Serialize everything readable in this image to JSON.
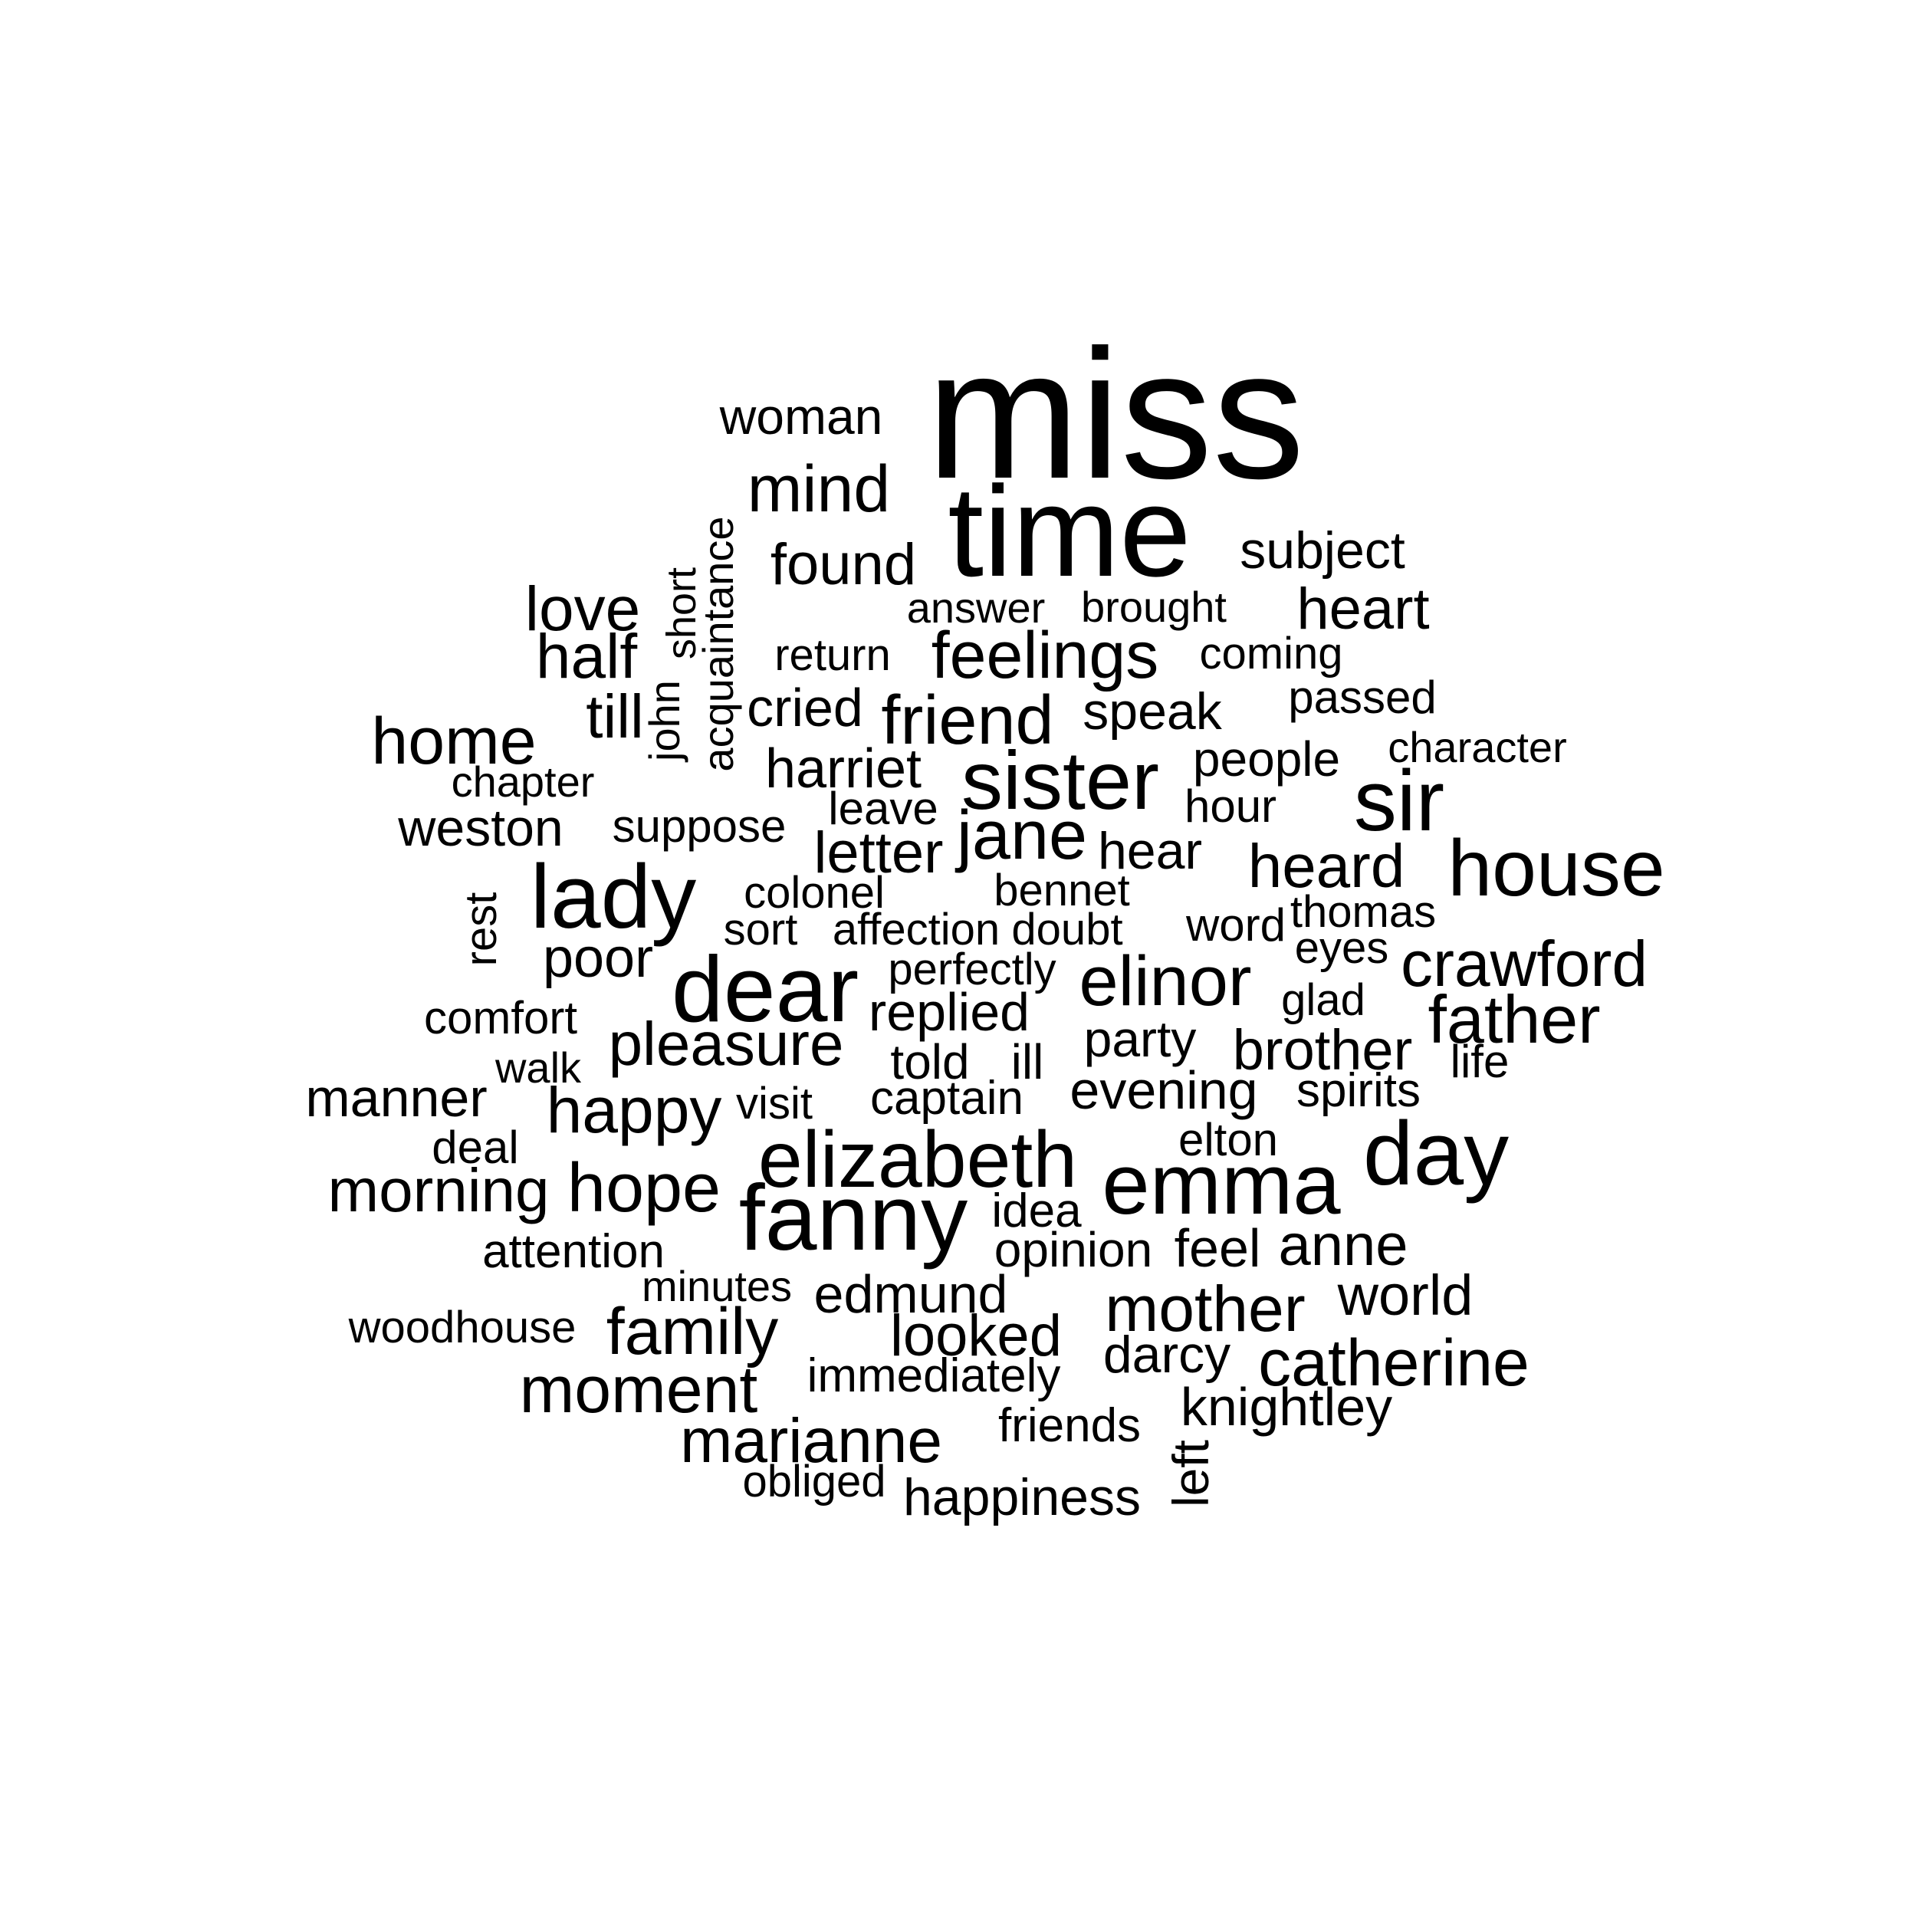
{
  "words": [
    "miss",
    "time",
    "woman",
    "mind",
    "found",
    "subject",
    "acquaintance",
    "short",
    "love",
    "answer",
    "brought",
    "heart",
    "half",
    "return",
    "feelings",
    "coming",
    "john",
    "till",
    "cried",
    "friend",
    "speak",
    "passed",
    "home",
    "harriet",
    "sister",
    "people",
    "character",
    "chapter",
    "sir",
    "leave",
    "hour",
    "weston",
    "suppose",
    "jane",
    "letter",
    "hear",
    "heard",
    "house",
    "lady",
    "rest",
    "colonel",
    "bennet",
    "thomas",
    "sort",
    "affection",
    "doubt",
    "word",
    "eyes",
    "poor",
    "perfectly",
    "dear",
    "elinor",
    "crawford",
    "comfort",
    "replied",
    "glad",
    "father",
    "pleasure",
    "party",
    "walk",
    "told",
    "ill",
    "brother",
    "life",
    "manner",
    "happy",
    "visit",
    "captain",
    "evening",
    "spirits",
    "deal",
    "elizabeth",
    "elton",
    "day",
    "morning",
    "hope",
    "emma",
    "idea",
    "fanny",
    "attention",
    "opinion",
    "feel",
    "anne",
    "minutes",
    "edmund",
    "world",
    "mother",
    "woodhouse",
    "family",
    "looked",
    "darcy",
    "catherine",
    "moment",
    "immediately",
    "knightley",
    "marianne",
    "friends",
    "left",
    "obliged",
    "happiness"
  ]
}
